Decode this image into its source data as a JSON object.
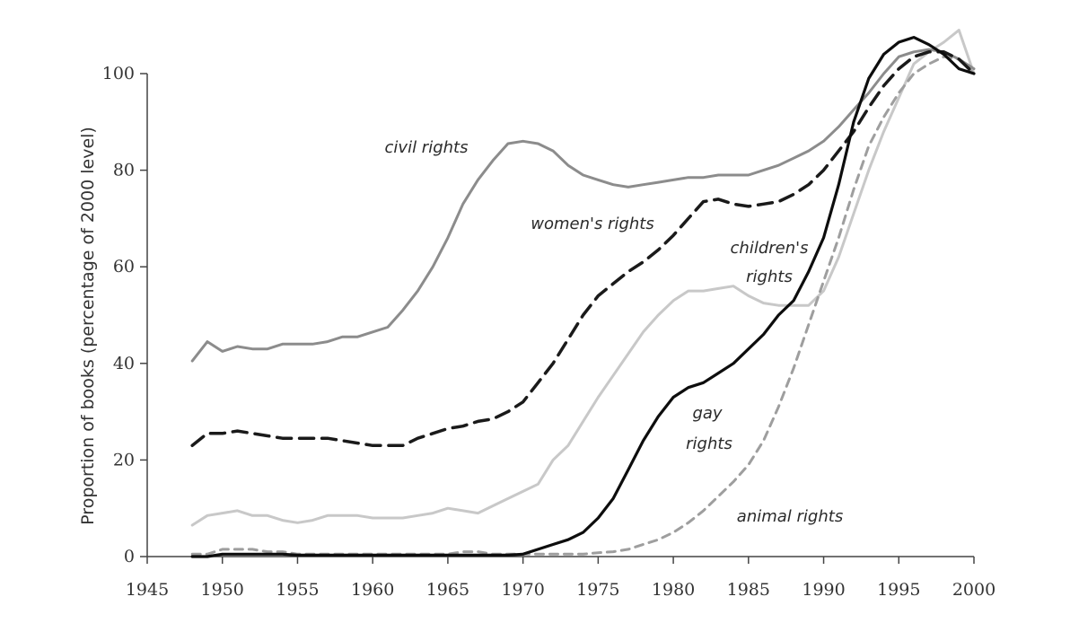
{
  "chart_data": {
    "type": "line",
    "title": "",
    "xlabel": "",
    "ylabel": "Proportion of books (percentage of 2000 level)",
    "xlim": [
      1945,
      2000
    ],
    "ylim": [
      0,
      100
    ],
    "x_ticks": [
      1945,
      1950,
      1955,
      1960,
      1965,
      1970,
      1975,
      1980,
      1985,
      1990,
      1995,
      2000
    ],
    "y_ticks": [
      0,
      20,
      40,
      60,
      80,
      100
    ],
    "grid": false,
    "legend": "inline labels",
    "series": [
      {
        "name": "civil rights",
        "color": "#8c8c8c",
        "dash": "solid",
        "x": [
          1948,
          1949,
          1950,
          1951,
          1952,
          1953,
          1954,
          1955,
          1956,
          1957,
          1958,
          1959,
          1960,
          1961,
          1962,
          1963,
          1964,
          1965,
          1966,
          1967,
          1968,
          1969,
          1970,
          1971,
          1972,
          1973,
          1974,
          1975,
          1976,
          1977,
          1978,
          1979,
          1980,
          1981,
          1982,
          1983,
          1984,
          1985,
          1986,
          1987,
          1988,
          1989,
          1990,
          1991,
          1992,
          1993,
          1994,
          1995,
          1996,
          1997,
          1998,
          1999,
          2000
        ],
        "values": [
          40.5,
          44.5,
          42.5,
          43.5,
          43,
          43,
          44,
          44,
          44,
          44.5,
          45.5,
          45.5,
          46.5,
          47.5,
          51,
          55,
          60,
          66,
          73,
          78,
          82,
          85.5,
          86,
          85.5,
          84,
          81,
          79,
          78,
          77,
          76.5,
          77,
          77.5,
          78,
          78.5,
          78.5,
          79,
          79,
          79,
          80,
          81,
          82.5,
          84,
          86,
          89,
          92.5,
          96,
          100,
          103.5,
          104.5,
          105,
          104.5,
          103,
          101
        ]
      },
      {
        "name": "women's rights",
        "color": "#1a1a1a",
        "dash": "long-dash",
        "x": [
          1948,
          1949,
          1950,
          1951,
          1952,
          1953,
          1954,
          1955,
          1956,
          1957,
          1958,
          1959,
          1960,
          1961,
          1962,
          1963,
          1964,
          1965,
          1966,
          1967,
          1968,
          1969,
          1970,
          1971,
          1972,
          1973,
          1974,
          1975,
          1976,
          1977,
          1978,
          1979,
          1980,
          1981,
          1982,
          1983,
          1984,
          1985,
          1986,
          1987,
          1988,
          1989,
          1990,
          1991,
          1992,
          1993,
          1994,
          1995,
          1996,
          1997,
          1998,
          1999,
          2000
        ],
        "values": [
          23,
          25.5,
          25.5,
          26,
          25.5,
          25,
          24.5,
          24.5,
          24.5,
          24.5,
          24,
          23.5,
          23,
          23,
          23,
          24.5,
          25.5,
          26.5,
          27,
          28,
          28.5,
          30,
          32,
          36,
          40,
          45,
          50,
          54,
          56.5,
          59,
          61,
          63.5,
          66.5,
          70,
          73.5,
          74,
          73,
          72.5,
          73,
          73.5,
          75,
          77,
          80,
          84,
          88,
          93,
          97.5,
          101,
          103.5,
          104.5,
          104.5,
          103,
          100
        ]
      },
      {
        "name": "children's rights",
        "color": "#c8c8c8",
        "dash": "solid",
        "x": [
          1948,
          1949,
          1950,
          1951,
          1952,
          1953,
          1954,
          1955,
          1956,
          1957,
          1958,
          1959,
          1960,
          1961,
          1962,
          1963,
          1964,
          1965,
          1966,
          1967,
          1968,
          1969,
          1970,
          1971,
          1972,
          1973,
          1974,
          1975,
          1976,
          1977,
          1978,
          1979,
          1980,
          1981,
          1982,
          1983,
          1984,
          1985,
          1986,
          1987,
          1988,
          1989,
          1990,
          1991,
          1992,
          1993,
          1994,
          1995,
          1996,
          1997,
          1998,
          1999,
          2000
        ],
        "values": [
          6.5,
          8.5,
          9,
          9.5,
          8.5,
          8.5,
          7.5,
          7,
          7.5,
          8.5,
          8.5,
          8.5,
          8,
          8,
          8,
          8.5,
          9,
          10,
          9.5,
          9,
          10.5,
          12,
          13.5,
          15,
          20,
          23,
          28,
          33,
          37.5,
          42,
          46.5,
          50,
          53,
          55,
          55,
          55.5,
          56,
          54,
          52.5,
          52,
          52,
          52,
          55,
          62,
          71,
          80,
          88,
          95,
          102,
          104.5,
          106.5,
          109,
          100
        ]
      },
      {
        "name": "gay rights",
        "color": "#0d0d0d",
        "dash": "solid",
        "x": [
          1948,
          1949,
          1950,
          1951,
          1952,
          1953,
          1954,
          1955,
          1956,
          1957,
          1958,
          1959,
          1960,
          1961,
          1962,
          1963,
          1964,
          1965,
          1966,
          1967,
          1968,
          1969,
          1970,
          1971,
          1972,
          1973,
          1974,
          1975,
          1976,
          1977,
          1978,
          1979,
          1980,
          1981,
          1982,
          1983,
          1984,
          1985,
          1986,
          1987,
          1988,
          1989,
          1990,
          1991,
          1992,
          1993,
          1994,
          1995,
          1996,
          1997,
          1998,
          1999,
          2000
        ],
        "values": [
          0,
          0,
          0.5,
          0.5,
          0.5,
          0.5,
          0.5,
          0.3,
          0.3,
          0.3,
          0.3,
          0.3,
          0.3,
          0.3,
          0.3,
          0.3,
          0.3,
          0.3,
          0.3,
          0.3,
          0.3,
          0.3,
          0.5,
          1.5,
          2.5,
          3.5,
          5,
          8,
          12,
          18,
          24,
          29,
          33,
          35,
          36,
          38,
          40,
          43,
          46,
          50,
          53,
          59,
          66,
          77,
          90,
          99,
          104,
          106.5,
          107.5,
          106,
          104,
          101,
          100
        ]
      },
      {
        "name": "animal rights",
        "color": "#9e9e9e",
        "dash": "short-dash",
        "x": [
          1948,
          1949,
          1950,
          1951,
          1952,
          1953,
          1954,
          1955,
          1956,
          1957,
          1958,
          1959,
          1960,
          1961,
          1962,
          1963,
          1964,
          1965,
          1966,
          1967,
          1968,
          1969,
          1970,
          1971,
          1972,
          1973,
          1974,
          1975,
          1976,
          1977,
          1978,
          1979,
          1980,
          1981,
          1982,
          1983,
          1984,
          1985,
          1986,
          1987,
          1988,
          1989,
          1990,
          1991,
          1992,
          1993,
          1994,
          1995,
          1996,
          1997,
          1998,
          1999,
          2000
        ],
        "values": [
          0.5,
          0.5,
          1.5,
          1.5,
          1.5,
          1,
          1,
          0.5,
          0.5,
          0.5,
          0.5,
          0.5,
          0.5,
          0.5,
          0.5,
          0.5,
          0.5,
          0.5,
          1,
          1,
          0.5,
          0.5,
          0.5,
          0.5,
          0.5,
          0.5,
          0.5,
          0.8,
          1,
          1.5,
          2.5,
          3.5,
          5,
          7,
          9.5,
          12.5,
          15.5,
          19,
          24,
          31,
          39,
          48,
          57,
          66,
          76,
          85,
          91,
          96,
          100,
          102,
          103.5,
          103,
          100
        ]
      }
    ],
    "annotations": [
      "civil rights",
      "women's rights",
      "children's",
      "rights",
      "gay",
      "rights",
      "animal rights"
    ]
  }
}
